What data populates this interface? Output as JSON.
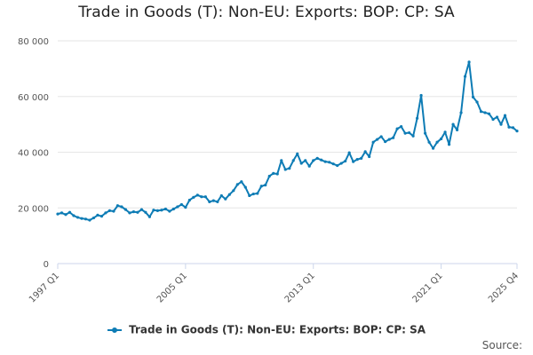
{
  "chart_data": {
    "type": "line",
    "title": "Trade in Goods (T): Non-EU: Exports: BOP: CP: SA",
    "xlabel": "",
    "ylabel": "",
    "ylim": [
      0,
      80000
    ],
    "yticks": [
      0,
      20000,
      40000,
      60000,
      80000
    ],
    "ytick_labels": [
      "0",
      "20 000",
      "40 000",
      "60 000",
      "80 000"
    ],
    "x_start": "1997 Q1",
    "x_end": "2025 Q4",
    "xticks": [
      "1997 Q1",
      "2005 Q1",
      "2013 Q1",
      "2021 Q1",
      "2025 Q4"
    ],
    "xtick_values": [
      1997.0,
      2005.0,
      2013.0,
      2021.0,
      2025.75
    ],
    "grid": true,
    "legend_position": "bottom",
    "color": "#0e7cb5",
    "series": [
      {
        "name": "Trade in Goods (T): Non-EU: Exports: BOP: CP: SA",
        "x": [
          1997.0,
          1997.25,
          1997.5,
          1997.75,
          1998.0,
          1998.25,
          1998.5,
          1998.75,
          1999.0,
          1999.25,
          1999.5,
          1999.75,
          2000.0,
          2000.25,
          2000.5,
          2000.75,
          2001.0,
          2001.25,
          2001.5,
          2001.75,
          2002.0,
          2002.25,
          2002.5,
          2002.75,
          2003.0,
          2003.25,
          2003.5,
          2003.75,
          2004.0,
          2004.25,
          2004.5,
          2004.75,
          2005.0,
          2005.25,
          2005.5,
          2005.75,
          2006.0,
          2006.25,
          2006.5,
          2006.75,
          2007.0,
          2007.25,
          2007.5,
          2007.75,
          2008.0,
          2008.25,
          2008.5,
          2008.75,
          2009.0,
          2009.25,
          2009.5,
          2009.75,
          2010.0,
          2010.25,
          2010.5,
          2010.75,
          2011.0,
          2011.25,
          2011.5,
          2011.75,
          2012.0,
          2012.25,
          2012.5,
          2012.75,
          2013.0,
          2013.25,
          2013.5,
          2013.75,
          2014.0,
          2014.25,
          2014.5,
          2014.75,
          2015.0,
          2015.25,
          2015.5,
          2015.75,
          2016.0,
          2016.25,
          2016.5,
          2016.75,
          2017.0,
          2017.25,
          2017.5,
          2017.75,
          2018.0,
          2018.25,
          2018.5,
          2018.75,
          2019.0,
          2019.25,
          2019.5,
          2019.75,
          2020.0,
          2020.25,
          2020.5,
          2020.75,
          2021.0,
          2021.25,
          2021.5,
          2021.75,
          2022.0,
          2022.25,
          2022.5,
          2022.75,
          2023.0,
          2023.25,
          2023.5,
          2023.75,
          2024.0,
          2024.25,
          2024.5,
          2024.75,
          2025.0,
          2025.25,
          2025.5,
          2025.75
        ],
        "values": [
          17800,
          18200,
          17600,
          18400,
          17200,
          16600,
          16200,
          16000,
          15600,
          16400,
          17400,
          17000,
          18200,
          19000,
          18800,
          20800,
          20400,
          19400,
          18200,
          18600,
          18400,
          19400,
          18400,
          16800,
          19200,
          19000,
          19200,
          19600,
          18800,
          19600,
          20400,
          21200,
          20200,
          22800,
          23800,
          24600,
          24000,
          24000,
          22200,
          22600,
          22200,
          24400,
          23200,
          24800,
          26200,
          28400,
          29400,
          27400,
          24400,
          25000,
          25200,
          27800,
          28200,
          31400,
          32400,
          32200,
          37000,
          33800,
          34200,
          37000,
          39400,
          36000,
          37000,
          35000,
          37000,
          37800,
          37200,
          36600,
          36400,
          35800,
          35200,
          36000,
          36800,
          39800,
          36600,
          37400,
          37800,
          40200,
          38400,
          43600,
          44600,
          45600,
          43800,
          44600,
          45200,
          48400,
          49200,
          46800,
          47000,
          45800,
          52200,
          60400,
          46800,
          43600,
          41400,
          43600,
          44800,
          47200,
          42800,
          50000,
          48000,
          54200,
          67200,
          72400,
          59800,
          58000,
          54600,
          54200,
          53800,
          51800,
          52600,
          50000,
          53200,
          49000,
          48800,
          47600
        ]
      }
    ],
    "source_label": "Source:"
  }
}
